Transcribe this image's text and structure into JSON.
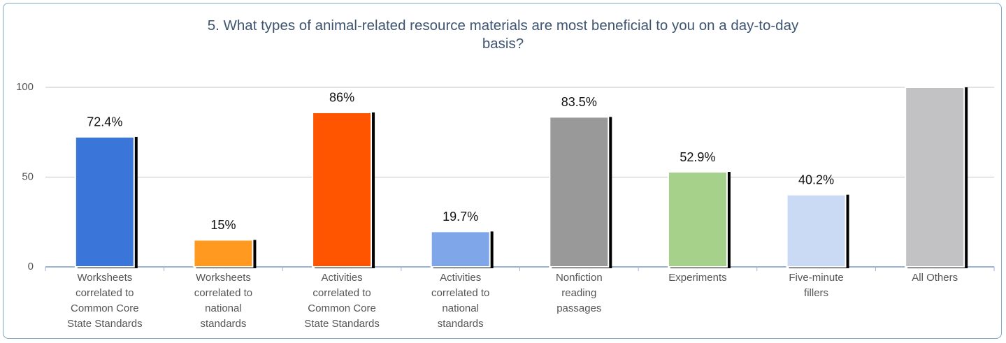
{
  "chart_data": {
    "type": "bar",
    "title": "5. What types of animal-related resource materials are most beneficial to you on a day-to-day basis?",
    "categories": [
      [
        "Worksheets",
        "correlated to",
        "Common Core",
        "State Standards"
      ],
      [
        "Worksheets",
        "correlated to",
        "national",
        "standards"
      ],
      [
        "Activities",
        "correlated to",
        "Common Core",
        "State Standards"
      ],
      [
        "Activities",
        "correlated to",
        "national",
        "standards"
      ],
      [
        "Nonfiction",
        "reading",
        "passages"
      ],
      [
        "Experiments"
      ],
      [
        "Five-minute",
        "fillers"
      ],
      [
        "All Others"
      ]
    ],
    "values": [
      72.4,
      15,
      86,
      19.7,
      83.5,
      52.9,
      40.2,
      100
    ],
    "value_labels": [
      "72.4%",
      "15%",
      "86%",
      "19.7%",
      "83.5%",
      "52.9%",
      "40.2%",
      null
    ],
    "colors": [
      "#3a75d9",
      "#ff9920",
      "#ff5500",
      "#7ea6e8",
      "#999999",
      "#a5d18b",
      "#cbdaf4",
      "#c2c2c4"
    ],
    "ylim": [
      0,
      100
    ],
    "yticks": [
      0,
      50,
      100
    ],
    "grid": true
  }
}
